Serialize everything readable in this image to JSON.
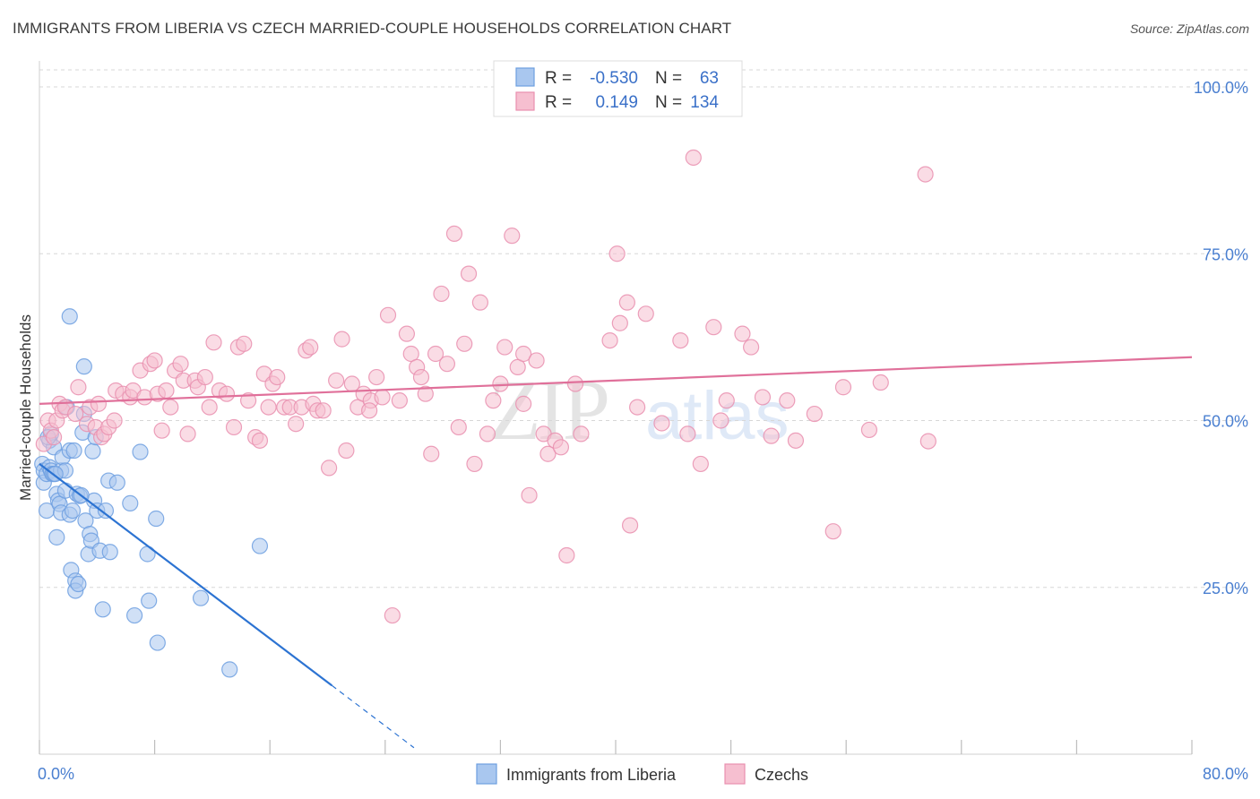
{
  "title": "IMMIGRANTS FROM LIBERIA VS CZECH MARRIED-COUPLE HOUSEHOLDS CORRELATION CHART",
  "source": "Source: ZipAtlas.com",
  "colors": {
    "blue_fill": "#a9c7ef",
    "blue_stroke": "#6d9fe0",
    "blue_line": "#2c73d2",
    "pink_fill": "#f6bfd0",
    "pink_stroke": "#e98faf",
    "pink_line": "#e0709a",
    "tick": "#4a7fd0"
  },
  "legend": {
    "rows": [
      {
        "r_label": "R =",
        "r_value": "-0.530",
        "n_label": "N =",
        "n_value": "63",
        "series": "blue"
      },
      {
        "r_label": "R =",
        "r_value": "0.149",
        "n_label": "N =",
        "n_value": "134",
        "series": "pink"
      }
    ]
  },
  "watermark": {
    "zip": "ZIP",
    "atlas": "atlas"
  },
  "chart_data": {
    "type": "scatter",
    "title": "IMMIGRANTS FROM LIBERIA VS CZECH MARRIED-COUPLE HOUSEHOLDS CORRELATION CHART",
    "ylabel": "Married-couple Households",
    "xlabel": "",
    "xlim": [
      0,
      80
    ],
    "ylim": [
      0,
      105
    ],
    "x_ticks": [
      {
        "value": 0,
        "label": "0.0%"
      },
      {
        "value": 80,
        "label": "80.0%"
      }
    ],
    "x_minor_ticks": [
      0,
      8,
      16,
      24,
      32,
      40,
      48,
      56,
      64,
      72,
      80
    ],
    "y_ticks": [
      {
        "value": 25,
        "label": "25.0%"
      },
      {
        "value": 50,
        "label": "50.0%"
      },
      {
        "value": 75,
        "label": "75.0%"
      },
      {
        "value": 100,
        "label": "100.0%"
      }
    ],
    "series": [
      {
        "name": "Immigrants from Liberia",
        "color": "blue",
        "trend": {
          "x0": 0,
          "y0": 43.5,
          "x1": 20.3,
          "y1": 10.3,
          "dash_x1": 26.0
        },
        "points": [
          [
            0.2,
            43.5
          ],
          [
            0.3,
            42.5
          ],
          [
            0.3,
            40.7
          ],
          [
            0.5,
            42
          ],
          [
            0.5,
            36.5
          ],
          [
            0.7,
            43
          ],
          [
            0.7,
            47
          ],
          [
            0.8,
            42.5
          ],
          [
            0.8,
            48
          ],
          [
            0.9,
            42
          ],
          [
            1,
            46
          ],
          [
            1,
            42
          ],
          [
            1.2,
            32.5
          ],
          [
            1.2,
            39
          ],
          [
            1.3,
            38
          ],
          [
            1.4,
            37.5
          ],
          [
            1.5,
            36.2
          ],
          [
            1.5,
            42.5
          ],
          [
            1.6,
            44.5
          ],
          [
            1.8,
            39.5
          ],
          [
            1.8,
            42.5
          ],
          [
            1.9,
            52
          ],
          [
            2.1,
            45.5
          ],
          [
            2.1,
            35.9
          ],
          [
            2.2,
            27.6
          ],
          [
            2.3,
            36.5
          ],
          [
            2.4,
            45.5
          ],
          [
            2.5,
            26
          ],
          [
            2.5,
            24.5
          ],
          [
            2.6,
            39
          ],
          [
            2.7,
            25.5
          ],
          [
            2.8,
            38.7
          ],
          [
            3,
            48.2
          ],
          [
            3.1,
            51
          ],
          [
            3.1,
            58.1
          ],
          [
            3.2,
            35
          ],
          [
            3.4,
            30
          ],
          [
            3.5,
            33
          ],
          [
            3.6,
            32
          ],
          [
            3.7,
            45.4
          ],
          [
            3.8,
            38
          ],
          [
            3.9,
            47.5
          ],
          [
            4,
            36.5
          ],
          [
            4.2,
            30.5
          ],
          [
            4.4,
            21.7
          ],
          [
            4.6,
            36.5
          ],
          [
            4.8,
            41
          ],
          [
            4.9,
            30.3
          ],
          [
            5.4,
            40.7
          ],
          [
            6.3,
            37.6
          ],
          [
            6.6,
            20.8
          ],
          [
            7,
            45.3
          ],
          [
            7.5,
            30
          ],
          [
            7.6,
            23
          ],
          [
            8.1,
            35.3
          ],
          [
            8.2,
            16.7
          ],
          [
            11.2,
            23.4
          ],
          [
            13.2,
            12.7
          ],
          [
            15.3,
            31.2
          ],
          [
            2.1,
            65.6
          ],
          [
            0.6,
            47.5
          ],
          [
            1.1,
            42
          ],
          [
            2.9,
            38.8
          ]
        ]
      },
      {
        "name": "Czechs",
        "color": "pink",
        "trend": {
          "x0": 0,
          "y0": 52.5,
          "x1": 80,
          "y1": 59.5
        },
        "points": [
          [
            0.3,
            46.5
          ],
          [
            0.6,
            50
          ],
          [
            0.8,
            48.5
          ],
          [
            1,
            47.5
          ],
          [
            1.2,
            50
          ],
          [
            1.4,
            52.5
          ],
          [
            1.6,
            51.5
          ],
          [
            1.8,
            52
          ],
          [
            2.5,
            51
          ],
          [
            2.7,
            55
          ],
          [
            3.3,
            49.5
          ],
          [
            3.5,
            52
          ],
          [
            3.9,
            49
          ],
          [
            4.1,
            52.5
          ],
          [
            4.3,
            47.5
          ],
          [
            4.5,
            48
          ],
          [
            4.8,
            49
          ],
          [
            5.2,
            50
          ],
          [
            5.3,
            54.5
          ],
          [
            5.8,
            54
          ],
          [
            6.3,
            53.5
          ],
          [
            6.5,
            54.5
          ],
          [
            7,
            57.5
          ],
          [
            7.3,
            53.5
          ],
          [
            7.7,
            58.5
          ],
          [
            8,
            59
          ],
          [
            8.2,
            54
          ],
          [
            8.5,
            48.5
          ],
          [
            8.8,
            54.5
          ],
          [
            9.1,
            52
          ],
          [
            9.4,
            57.5
          ],
          [
            9.8,
            58.5
          ],
          [
            10,
            56
          ],
          [
            10.3,
            48
          ],
          [
            10.8,
            56
          ],
          [
            11,
            55
          ],
          [
            11.5,
            56.5
          ],
          [
            11.8,
            52
          ],
          [
            12.1,
            61.7
          ],
          [
            12.5,
            54.5
          ],
          [
            13,
            54
          ],
          [
            13.5,
            49
          ],
          [
            13.8,
            61
          ],
          [
            14.2,
            61.5
          ],
          [
            14.5,
            53
          ],
          [
            15,
            47.5
          ],
          [
            15.3,
            47
          ],
          [
            15.6,
            57
          ],
          [
            15.9,
            52
          ],
          [
            16.2,
            55.5
          ],
          [
            16.5,
            56.5
          ],
          [
            17,
            52
          ],
          [
            17.4,
            52
          ],
          [
            17.8,
            49.5
          ],
          [
            18.2,
            52
          ],
          [
            18.5,
            60.5
          ],
          [
            18.8,
            61
          ],
          [
            19,
            52.5
          ],
          [
            19.3,
            51.5
          ],
          [
            19.7,
            51.5
          ],
          [
            20.1,
            42.9
          ],
          [
            20.6,
            56
          ],
          [
            21,
            62.2
          ],
          [
            21.3,
            45.5
          ],
          [
            21.7,
            55.5
          ],
          [
            22.1,
            52
          ],
          [
            22.5,
            54
          ],
          [
            23,
            53
          ],
          [
            23.4,
            56.5
          ],
          [
            23.8,
            53.5
          ],
          [
            24.2,
            65.8
          ],
          [
            24.5,
            20.8
          ],
          [
            25,
            53
          ],
          [
            25.5,
            63
          ],
          [
            25.8,
            60
          ],
          [
            26.2,
            58
          ],
          [
            26.5,
            56.5
          ],
          [
            26.8,
            54
          ],
          [
            27.2,
            45
          ],
          [
            27.5,
            60
          ],
          [
            27.9,
            69
          ],
          [
            28.3,
            58.5
          ],
          [
            28.8,
            78
          ],
          [
            29.1,
            49
          ],
          [
            29.5,
            61.5
          ],
          [
            29.8,
            72
          ],
          [
            30.2,
            43.5
          ],
          [
            30.6,
            67.7
          ],
          [
            31.1,
            48
          ],
          [
            31.5,
            53
          ],
          [
            32,
            55.5
          ],
          [
            32.3,
            61
          ],
          [
            32.8,
            77.7
          ],
          [
            33.2,
            58
          ],
          [
            33.6,
            60
          ],
          [
            34,
            38.8
          ],
          [
            34.5,
            59
          ],
          [
            35,
            48
          ],
          [
            35.3,
            45
          ],
          [
            35.8,
            47
          ],
          [
            36.2,
            46
          ],
          [
            36.6,
            29.8
          ],
          [
            37.2,
            55.5
          ],
          [
            37.6,
            48
          ],
          [
            39.6,
            62
          ],
          [
            40.1,
            75
          ],
          [
            40.3,
            64.6
          ],
          [
            40.8,
            67.7
          ],
          [
            41,
            34.3
          ],
          [
            42.1,
            66
          ],
          [
            43.2,
            49.6
          ],
          [
            44.5,
            62
          ],
          [
            45,
            48
          ],
          [
            45.4,
            89.4
          ],
          [
            45.9,
            43.5
          ],
          [
            46.8,
            64
          ],
          [
            47.3,
            50
          ],
          [
            47.7,
            53
          ],
          [
            48.8,
            63
          ],
          [
            49.4,
            61
          ],
          [
            50.2,
            53.5
          ],
          [
            51.9,
            53
          ],
          [
            52.5,
            47
          ],
          [
            53.8,
            51
          ],
          [
            55.1,
            33.4
          ],
          [
            55.8,
            55
          ],
          [
            57.6,
            48.6
          ],
          [
            58.4,
            55.7
          ],
          [
            61.5,
            86.9
          ],
          [
            61.7,
            46.9
          ],
          [
            33.6,
            52.5
          ],
          [
            41.5,
            52
          ],
          [
            50.8,
            47.7
          ],
          [
            22.9,
            51.5
          ]
        ]
      }
    ]
  },
  "bottom_legend": [
    {
      "label": "Immigrants from Liberia",
      "series": "blue"
    },
    {
      "label": "Czechs",
      "series": "pink"
    }
  ]
}
